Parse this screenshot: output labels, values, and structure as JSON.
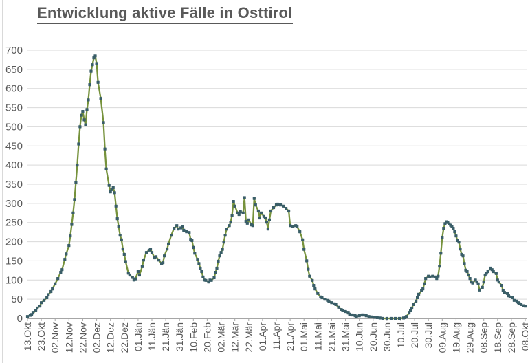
{
  "colors": {
    "line": "#76923C",
    "marker": "#3A5E68",
    "grid": "#D9D9D9",
    "axis": "#A6A6A6",
    "text": "#595959",
    "background": "#FFFFFF"
  },
  "chart_data": {
    "type": "line",
    "title": "Entwicklung aktive Fälle in Osttirol",
    "xlabel": "",
    "ylabel": "",
    "ylim": [
      0,
      700
    ],
    "y_tick_step": 50,
    "grid": "horizontal",
    "legend": "none",
    "x_tick_interval_days": 10,
    "x_tick_labels": [
      "13.Okt",
      "23.Okt",
      "02.Nov",
      "12.Nov",
      "22.Nov",
      "02.Dez",
      "12.Dez",
      "22.Dez",
      "01.Jän",
      "11.Jän",
      "21.Jän",
      "31.Jän",
      "10.Feb",
      "20.Feb",
      "02.Mär",
      "12.Mär",
      "22.Mär",
      "01.Apr",
      "11.Apr",
      "21.Apr",
      "01.Mai",
      "11.Mai",
      "21.Mai",
      "31.Mai",
      "10.Jun",
      "20.Jun",
      "30.Jun",
      "10.Jul",
      "20.Jul",
      "30.Jul",
      "09.Aug",
      "19.Aug",
      "29.Aug",
      "08.Sep",
      "18.Sep",
      "28.Sep",
      "08.Okt"
    ],
    "series": [
      {
        "name": "aktive Fälle",
        "marker": "square",
        "points_format": "[day_index_from_13.Okt, active_cases]",
        "points": [
          [
            0,
            5
          ],
          [
            2,
            8
          ],
          [
            3,
            10
          ],
          [
            4,
            14
          ],
          [
            6,
            20
          ],
          [
            7,
            27
          ],
          [
            9,
            32
          ],
          [
            10,
            41
          ],
          [
            12,
            47
          ],
          [
            14,
            54
          ],
          [
            15,
            62
          ],
          [
            17,
            70
          ],
          [
            18,
            77
          ],
          [
            20,
            90
          ],
          [
            22,
            104
          ],
          [
            24,
            120
          ],
          [
            25,
            127
          ],
          [
            27,
            154
          ],
          [
            28,
            168
          ],
          [
            30,
            190
          ],
          [
            31,
            215
          ],
          [
            32,
            245
          ],
          [
            33,
            275
          ],
          [
            34,
            310
          ],
          [
            35,
            355
          ],
          [
            36,
            400
          ],
          [
            37,
            455
          ],
          [
            38,
            500
          ],
          [
            39,
            530
          ],
          [
            40,
            540
          ],
          [
            41,
            518
          ],
          [
            42,
            505
          ],
          [
            43,
            545
          ],
          [
            44,
            570
          ],
          [
            45,
            610
          ],
          [
            46,
            645
          ],
          [
            47,
            662
          ],
          [
            48,
            680
          ],
          [
            49,
            685
          ],
          [
            50,
            665
          ],
          [
            51,
            616
          ],
          [
            53,
            574
          ],
          [
            55,
            511
          ],
          [
            56,
            442
          ],
          [
            57,
            390
          ],
          [
            59,
            347
          ],
          [
            60,
            330
          ],
          [
            61,
            336
          ],
          [
            62,
            341
          ],
          [
            63,
            328
          ],
          [
            64,
            293
          ],
          [
            65,
            260
          ],
          [
            66,
            239
          ],
          [
            67,
            217
          ],
          [
            68,
            205
          ],
          [
            69,
            181
          ],
          [
            70,
            167
          ],
          [
            71,
            148
          ],
          [
            73,
            118
          ],
          [
            74,
            113
          ],
          [
            76,
            107
          ],
          [
            77,
            100
          ],
          [
            78,
            103
          ],
          [
            80,
            122
          ],
          [
            81,
            113
          ],
          [
            83,
            135
          ],
          [
            84,
            152
          ],
          [
            86,
            172
          ],
          [
            88,
            178
          ],
          [
            89,
            181
          ],
          [
            90,
            172
          ],
          [
            92,
            158
          ],
          [
            93,
            161
          ],
          [
            95,
            152
          ],
          [
            97,
            143
          ],
          [
            98,
            145
          ],
          [
            99,
            163
          ],
          [
            101,
            181
          ],
          [
            102,
            194
          ],
          [
            104,
            217
          ],
          [
            106,
            235
          ],
          [
            108,
            242
          ],
          [
            109,
            233
          ],
          [
            111,
            236
          ],
          [
            112,
            239
          ],
          [
            113,
            230
          ],
          [
            115,
            226
          ],
          [
            117,
            224
          ],
          [
            118,
            206
          ],
          [
            119,
            203
          ],
          [
            120,
            185
          ],
          [
            121,
            170
          ],
          [
            123,
            154
          ],
          [
            124,
            143
          ],
          [
            125,
            131
          ],
          [
            126,
            122
          ],
          [
            127,
            108
          ],
          [
            128,
            100
          ],
          [
            129,
            99
          ],
          [
            131,
            95
          ],
          [
            132,
            100
          ],
          [
            133,
            99
          ],
          [
            135,
            106
          ],
          [
            136,
            120
          ],
          [
            137,
            131
          ],
          [
            138,
            149
          ],
          [
            139,
            163
          ],
          [
            140,
            172
          ],
          [
            141,
            180
          ],
          [
            142,
            199
          ],
          [
            143,
            217
          ],
          [
            144,
            233
          ],
          [
            146,
            242
          ],
          [
            147,
            251
          ],
          [
            148,
            269
          ],
          [
            149,
            305
          ],
          [
            150,
            293
          ],
          [
            152,
            275
          ],
          [
            153,
            271
          ],
          [
            154,
            278
          ],
          [
            156,
            275
          ],
          [
            157,
            315
          ],
          [
            158,
            253
          ],
          [
            159,
            248
          ],
          [
            160,
            257
          ],
          [
            162,
            244
          ],
          [
            163,
            242
          ],
          [
            164,
            313
          ],
          [
            165,
            296
          ],
          [
            167,
            280
          ],
          [
            168,
            262
          ],
          [
            169,
            275
          ],
          [
            171,
            266
          ],
          [
            172,
            262
          ],
          [
            173,
            251
          ],
          [
            174,
            233
          ],
          [
            175,
            257
          ],
          [
            176,
            280
          ],
          [
            178,
            289
          ],
          [
            180,
            296
          ],
          [
            181,
            298
          ],
          [
            183,
            296
          ],
          [
            185,
            293
          ],
          [
            187,
            287
          ],
          [
            189,
            280
          ],
          [
            190,
            242
          ],
          [
            192,
            239
          ],
          [
            194,
            242
          ],
          [
            195,
            239
          ],
          [
            197,
            226
          ],
          [
            199,
            205
          ],
          [
            200,
            180
          ],
          [
            202,
            150
          ],
          [
            203,
            128
          ],
          [
            204,
            110
          ],
          [
            206,
            99
          ],
          [
            207,
            86
          ],
          [
            208,
            77
          ],
          [
            210,
            65
          ],
          [
            212,
            56
          ],
          [
            213,
            54
          ],
          [
            215,
            50
          ],
          [
            217,
            47
          ],
          [
            218,
            45
          ],
          [
            220,
            41
          ],
          [
            222,
            38
          ],
          [
            223,
            36
          ],
          [
            225,
            29
          ],
          [
            227,
            23
          ],
          [
            228,
            20
          ],
          [
            230,
            18
          ],
          [
            232,
            14
          ],
          [
            233,
            11
          ],
          [
            235,
            9
          ],
          [
            237,
            7
          ],
          [
            238,
            5
          ],
          [
            240,
            7
          ],
          [
            242,
            9
          ],
          [
            243,
            9
          ],
          [
            245,
            7
          ],
          [
            247,
            5
          ],
          [
            249,
            4
          ],
          [
            251,
            3
          ],
          [
            253,
            2
          ],
          [
            255,
            1
          ],
          [
            257,
            0
          ],
          [
            260,
            0
          ],
          [
            263,
            0
          ],
          [
            266,
            0
          ],
          [
            269,
            0
          ],
          [
            272,
            1
          ],
          [
            273,
            2
          ],
          [
            274,
            5
          ],
          [
            276,
            14
          ],
          [
            277,
            20
          ],
          [
            278,
            27
          ],
          [
            279,
            36
          ],
          [
            281,
            45
          ],
          [
            282,
            54
          ],
          [
            283,
            63
          ],
          [
            285,
            72
          ],
          [
            286,
            77
          ],
          [
            287,
            90
          ],
          [
            288,
            104
          ],
          [
            290,
            110
          ],
          [
            291,
            108
          ],
          [
            293,
            110
          ],
          [
            295,
            108
          ],
          [
            296,
            104
          ],
          [
            297,
            110
          ],
          [
            298,
            136
          ],
          [
            299,
            170
          ],
          [
            300,
            210
          ],
          [
            301,
            235
          ],
          [
            302,
            247
          ],
          [
            303,
            252
          ],
          [
            304,
            250
          ],
          [
            305,
            246
          ],
          [
            306,
            243
          ],
          [
            307,
            240
          ],
          [
            308,
            235
          ],
          [
            309,
            226
          ],
          [
            310,
            215
          ],
          [
            311,
            203
          ],
          [
            312,
            199
          ],
          [
            313,
            181
          ],
          [
            314,
            167
          ],
          [
            315,
            163
          ],
          [
            316,
            143
          ],
          [
            317,
            126
          ],
          [
            318,
            122
          ],
          [
            319,
            113
          ],
          [
            320,
            104
          ],
          [
            321,
            95
          ],
          [
            322,
            92
          ],
          [
            324,
            100
          ],
          [
            325,
            95
          ],
          [
            326,
            90
          ],
          [
            327,
            74
          ],
          [
            329,
            81
          ],
          [
            330,
            95
          ],
          [
            331,
            113
          ],
          [
            332,
            118
          ],
          [
            333,
            122
          ],
          [
            335,
            131
          ],
          [
            336,
            127
          ],
          [
            337,
            122
          ],
          [
            339,
            117
          ],
          [
            340,
            100
          ],
          [
            341,
            95
          ],
          [
            343,
            86
          ],
          [
            344,
            72
          ],
          [
            345,
            68
          ],
          [
            347,
            65
          ],
          [
            348,
            59
          ],
          [
            349,
            56
          ],
          [
            351,
            54
          ],
          [
            352,
            47
          ],
          [
            354,
            45
          ],
          [
            355,
            41
          ],
          [
            356,
            38
          ],
          [
            357,
            36
          ],
          [
            359,
            33
          ],
          [
            360,
            32
          ]
        ]
      }
    ]
  }
}
